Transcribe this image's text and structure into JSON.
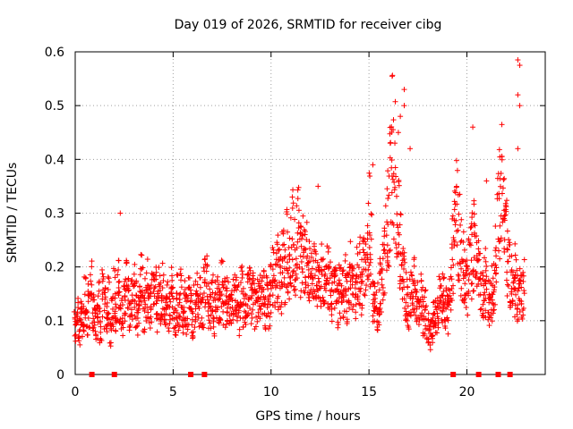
{
  "chart_data": {
    "type": "scatter",
    "title": "Day 019 of 2026, SRMTID for receiver cibg",
    "xlabel": "GPS time / hours",
    "ylabel": "SRMTID / TECUs",
    "xlim": [
      0,
      24
    ],
    "ylim": [
      0,
      0.6
    ],
    "xticks": [
      0,
      5,
      10,
      15,
      20
    ],
    "xtick_labels": [
      "0",
      "5",
      "10",
      "15",
      "20"
    ],
    "yticks": [
      0,
      0.1,
      0.2,
      0.3,
      0.4,
      0.5,
      0.6
    ],
    "ytick_labels": [
      "0",
      "0.1",
      "0.2",
      "0.3",
      "0.4",
      "0.5",
      "0.6"
    ],
    "grid": true,
    "marker": "+",
    "series": [
      {
        "name": "SRMTID",
        "color": "#ff0000",
        "x": [
          0.0,
          0.1,
          0.2,
          0.3,
          0.4,
          0.5,
          0.6,
          0.7,
          0.8,
          0.9,
          1.0,
          1.1,
          1.2,
          1.3,
          1.4,
          1.5,
          1.6,
          1.7,
          1.8,
          1.9,
          2.0,
          2.1,
          2.2,
          2.3,
          2.4,
          2.5,
          2.6,
          2.7,
          2.8,
          2.9,
          3.0,
          3.1,
          3.2,
          3.3,
          3.4,
          3.5,
          3.6,
          3.7,
          3.8,
          3.9,
          4.0,
          4.1,
          4.2,
          4.3,
          4.4,
          4.5,
          4.6,
          4.7,
          4.8,
          4.9,
          5.0,
          5.1,
          5.2,
          5.3,
          5.4,
          5.5,
          5.6,
          5.7,
          5.8,
          5.9,
          6.0,
          6.1,
          6.2,
          6.3,
          6.4,
          6.5,
          6.6,
          6.7,
          6.8,
          6.9,
          7.0,
          7.1,
          7.2,
          7.3,
          7.4,
          7.5,
          7.6,
          7.7,
          7.8,
          7.9,
          8.0,
          8.1,
          8.2,
          8.3,
          8.4,
          8.5,
          8.6,
          8.7,
          8.8,
          8.9,
          9.0,
          9.1,
          9.2,
          9.3,
          9.4,
          9.5,
          9.6,
          9.7,
          9.8,
          9.9,
          10.0,
          10.1,
          10.2,
          10.3,
          10.4,
          10.5,
          10.6,
          10.7,
          10.8,
          10.9,
          11.0,
          11.1,
          11.2,
          11.3,
          11.4,
          11.5,
          11.6,
          11.7,
          11.8,
          11.9,
          12.0,
          12.1,
          12.2,
          12.3,
          12.4,
          12.5,
          12.6,
          12.7,
          12.8,
          12.9,
          13.0,
          13.1,
          13.2,
          13.3,
          13.4,
          13.5,
          13.6,
          13.7,
          13.8,
          13.9,
          14.0,
          14.1,
          14.2,
          14.3,
          14.4,
          14.5,
          14.6,
          14.7,
          14.8,
          14.9,
          15.0,
          15.1,
          15.2,
          15.3,
          15.4,
          15.5,
          15.6,
          15.7,
          15.8,
          15.9,
          16.0,
          16.1,
          16.2,
          16.3,
          16.4,
          16.5,
          16.6,
          16.7,
          16.8,
          16.9,
          17.0,
          17.1,
          17.2,
          17.3,
          17.4,
          17.5,
          17.6,
          17.7,
          17.8,
          17.9,
          18.0,
          18.1,
          18.2,
          18.3,
          18.4,
          18.5,
          18.6,
          18.7,
          18.8,
          18.9,
          19.0,
          19.1,
          19.2,
          19.3,
          19.4,
          19.5,
          19.6,
          19.7,
          19.8,
          19.9,
          20.0,
          20.1,
          20.2,
          20.3,
          20.4,
          20.5,
          20.6,
          20.7,
          20.8,
          20.9,
          21.0,
          21.1,
          21.2,
          21.3,
          21.4,
          21.5,
          21.6,
          21.7,
          21.8,
          21.9,
          22.0,
          22.1,
          22.2,
          22.3,
          22.4,
          22.5,
          22.6,
          22.7,
          22.8,
          22.9
        ],
        "y": [
          0.09,
          0.11,
          0.08,
          0.12,
          0.1,
          0.14,
          0.09,
          0.13,
          0.16,
          0.11,
          0.12,
          0.1,
          0.13,
          0.09,
          0.15,
          0.12,
          0.11,
          0.14,
          0.08,
          0.13,
          0.15,
          0.12,
          0.16,
          0.14,
          0.11,
          0.13,
          0.17,
          0.15,
          0.12,
          0.14,
          0.16,
          0.13,
          0.11,
          0.15,
          0.18,
          0.12,
          0.14,
          0.16,
          0.13,
          0.15,
          0.14,
          0.17,
          0.12,
          0.15,
          0.13,
          0.16,
          0.11,
          0.14,
          0.12,
          0.15,
          0.13,
          0.11,
          0.14,
          0.12,
          0.15,
          0.1,
          0.13,
          0.11,
          0.14,
          0.12,
          0.1,
          0.13,
          0.15,
          0.12,
          0.14,
          0.11,
          0.16,
          0.18,
          0.13,
          0.12,
          0.14,
          0.11,
          0.13,
          0.15,
          0.12,
          0.16,
          0.14,
          0.12,
          0.15,
          0.13,
          0.12,
          0.14,
          0.16,
          0.13,
          0.11,
          0.15,
          0.13,
          0.12,
          0.14,
          0.16,
          0.13,
          0.15,
          0.12,
          0.14,
          0.16,
          0.13,
          0.15,
          0.12,
          0.14,
          0.13,
          0.17,
          0.19,
          0.16,
          0.2,
          0.18,
          0.17,
          0.21,
          0.19,
          0.23,
          0.2,
          0.24,
          0.26,
          0.22,
          0.25,
          0.28,
          0.21,
          0.23,
          0.2,
          0.22,
          0.19,
          0.21,
          0.18,
          0.2,
          0.17,
          0.19,
          0.16,
          0.18,
          0.17,
          0.15,
          0.18,
          0.16,
          0.14,
          0.17,
          0.15,
          0.13,
          0.16,
          0.18,
          0.15,
          0.17,
          0.14,
          0.16,
          0.19,
          0.17,
          0.15,
          0.18,
          0.2,
          0.17,
          0.19,
          0.22,
          0.25,
          0.28,
          0.24,
          0.15,
          0.13,
          0.12,
          0.14,
          0.16,
          0.18,
          0.22,
          0.26,
          0.3,
          0.35,
          0.42,
          0.38,
          0.31,
          0.28,
          0.24,
          0.2,
          0.17,
          0.15,
          0.13,
          0.16,
          0.14,
          0.17,
          0.15,
          0.13,
          0.12,
          0.14,
          0.11,
          0.13,
          0.09,
          0.07,
          0.08,
          0.1,
          0.12,
          0.11,
          0.14,
          0.13,
          0.15,
          0.12,
          0.11,
          0.14,
          0.18,
          0.22,
          0.27,
          0.31,
          0.25,
          0.22,
          0.2,
          0.18,
          0.16,
          0.19,
          0.21,
          0.23,
          0.26,
          0.22,
          0.19,
          0.17,
          0.15,
          0.18,
          0.16,
          0.14,
          0.13,
          0.15,
          0.18,
          0.22,
          0.28,
          0.31,
          0.35,
          0.27,
          0.24,
          0.2,
          0.19,
          0.17,
          0.16,
          0.18,
          0.15,
          0.17,
          0.14,
          0.16
        ]
      }
    ],
    "highlight_points": {
      "x": [
        12.4,
        16.8,
        16.8,
        20.3,
        21.0,
        22.6,
        22.7,
        22.6,
        22.7,
        22.6,
        15.2,
        16.5,
        16.6,
        17.1,
        2.3
      ],
      "y": [
        0.35,
        0.53,
        0.5,
        0.46,
        0.36,
        0.585,
        0.575,
        0.52,
        0.5,
        0.42,
        0.39,
        0.45,
        0.48,
        0.42,
        0.3
      ]
    },
    "gap_markers_x": [
      0.85,
      2.0,
      5.9,
      6.6,
      19.3,
      20.6,
      21.6,
      22.2
    ]
  }
}
